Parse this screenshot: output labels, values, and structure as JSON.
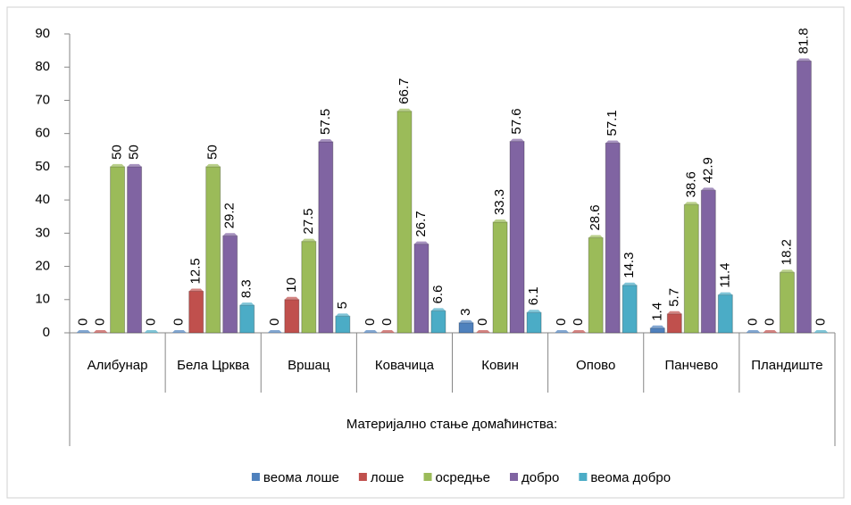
{
  "chart_data": {
    "type": "bar",
    "categories": [
      "Алибунар",
      "Бела Црква",
      "Вршац",
      "Ковачица",
      "Ковин",
      "Опово",
      "Панчево",
      "Пландиште"
    ],
    "xlabel": "Материјално стање домаћинства:",
    "series": [
      {
        "name": "веома лоше",
        "color": "#4f81bd",
        "values": [
          0,
          0,
          0,
          0,
          3,
          0,
          1.4,
          0
        ]
      },
      {
        "name": "лоше",
        "color": "#c0504d",
        "values": [
          0,
          12.5,
          10,
          0,
          0,
          0,
          5.7,
          0
        ]
      },
      {
        "name": "осредње",
        "color": "#9bbb59",
        "values": [
          50,
          50,
          27.5,
          66.7,
          33.3,
          28.6,
          38.6,
          18.2
        ]
      },
      {
        "name": "добро",
        "color": "#8064a2",
        "values": [
          50,
          29.2,
          57.5,
          26.7,
          57.6,
          57.1,
          42.9,
          81.8
        ]
      },
      {
        "name": "веома добро",
        "color": "#4bacc6",
        "values": [
          0,
          8.3,
          5,
          6.6,
          6.1,
          14.3,
          11.4,
          0
        ]
      }
    ],
    "ylim": [
      0,
      90
    ],
    "yticks": [
      0,
      10,
      20,
      30,
      40,
      50,
      60,
      70,
      80,
      90
    ],
    "legend": "bottom"
  }
}
